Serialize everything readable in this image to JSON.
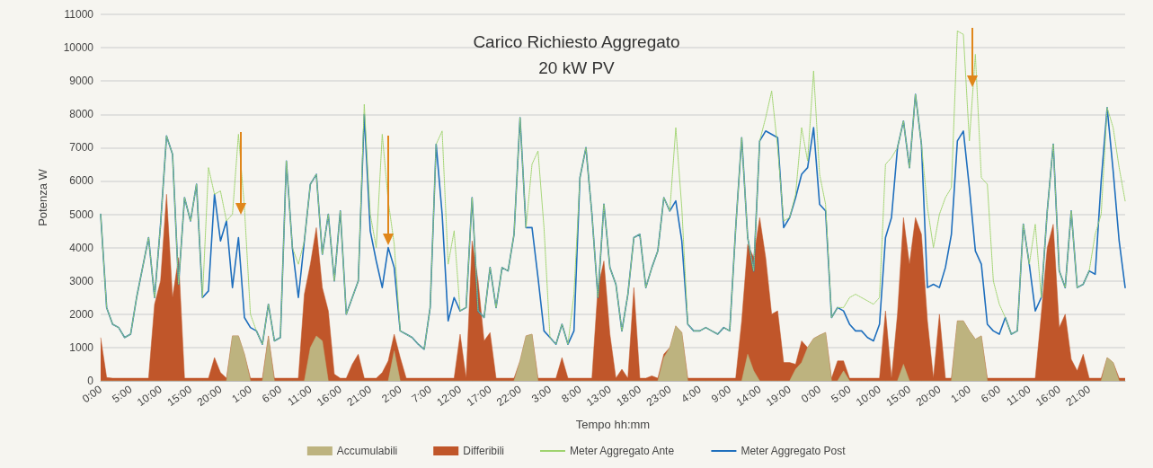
{
  "chart_data": {
    "type": "line",
    "title": "Carico Richiesto Aggregato",
    "subtitle": "20 kW PV",
    "xlabel": "Tempo hh:mm",
    "ylabel": "Potenza W",
    "categories": [
      "0:00",
      null,
      null,
      null,
      null,
      "5:00",
      null,
      null,
      null,
      null,
      "10:00",
      null,
      null,
      null,
      null,
      "15:00",
      null,
      null,
      null,
      null,
      "20:00",
      null,
      null,
      null,
      null,
      "1:00",
      null,
      null,
      null,
      null,
      "6:00",
      null,
      null,
      null,
      null,
      "11:00",
      null,
      null,
      null,
      null,
      "16:00",
      null,
      null,
      null,
      null,
      "21:00",
      null,
      null,
      null,
      null,
      "2:00",
      null,
      null,
      null,
      null,
      "7:00",
      null,
      null,
      null,
      null,
      "12:00",
      null,
      null,
      null,
      null,
      "17:00",
      null,
      null,
      null,
      null,
      "22:00",
      null,
      null,
      null,
      null,
      "3:00",
      null,
      null,
      null,
      null,
      "8:00",
      null,
      null,
      null,
      null,
      "13:00",
      null,
      null,
      null,
      null,
      "18:00",
      null,
      null,
      null,
      null,
      "23:00",
      null,
      null,
      null,
      null,
      "4:00",
      null,
      null,
      null,
      null,
      "9:00",
      null,
      null,
      null,
      null,
      "14:00",
      null,
      null,
      null,
      null,
      "19:00",
      null,
      null,
      null,
      null,
      "0:00",
      null,
      null,
      null,
      null,
      "5:00",
      null,
      null,
      null,
      null,
      "10:00",
      null,
      null,
      null,
      null,
      "15:00",
      null,
      null,
      null,
      null,
      "20:00",
      null,
      null,
      null,
      null,
      "1:00",
      null,
      null,
      null,
      null,
      "6:00",
      null,
      null,
      null,
      null,
      "11:00",
      null,
      null,
      null,
      null,
      "16:00",
      null,
      null,
      null,
      null,
      "21:00",
      null,
      null,
      null,
      null,
      null,
      null
    ],
    "series": [
      {
        "name": "Accumulabili",
        "type": "area",
        "color": "#bdb37f",
        "values": [
          0,
          0,
          0,
          0,
          0,
          0,
          0,
          0,
          0,
          0,
          0,
          0,
          0,
          0,
          0,
          0,
          0,
          0,
          0,
          0,
          0,
          0,
          1350,
          1350,
          800,
          0,
          0,
          0,
          1300,
          0,
          0,
          0,
          0,
          0,
          0,
          1000,
          1350,
          1200,
          0,
          0,
          0,
          0,
          0,
          0,
          0,
          0,
          0,
          0,
          0,
          900,
          0,
          0,
          0,
          0,
          0,
          0,
          0,
          0,
          0,
          0,
          0,
          0,
          0,
          0,
          0,
          0,
          0,
          0,
          0,
          0,
          600,
          1350,
          1400,
          0,
          0,
          0,
          0,
          0,
          0,
          0,
          0,
          0,
          0,
          0,
          0,
          0,
          0,
          0,
          0,
          0,
          0,
          0,
          0,
          0,
          700,
          1000,
          1650,
          1450,
          0,
          0,
          0,
          0,
          0,
          0,
          0,
          0,
          0,
          0,
          800,
          300,
          0,
          0,
          0,
          0,
          0,
          0,
          350,
          550,
          1000,
          1270,
          1370,
          1450,
          0,
          0,
          300,
          0,
          0,
          0,
          0,
          0,
          0,
          0,
          0,
          0,
          500,
          0,
          0,
          0,
          0,
          0,
          0,
          0,
          0,
          1800,
          1800,
          1500,
          1250,
          1350,
          0,
          0,
          0,
          0,
          0,
          0,
          0,
          0,
          0,
          0,
          0,
          0,
          0,
          0,
          0,
          0,
          0,
          0,
          0,
          0,
          700,
          550,
          0,
          0
        ]
      },
      {
        "name": "Differibili",
        "type": "area",
        "color": "#c0562a",
        "values": [
          1300,
          100,
          80,
          80,
          80,
          80,
          80,
          80,
          80,
          2300,
          3000,
          5600,
          2500,
          3700,
          80,
          80,
          80,
          80,
          80,
          700,
          250,
          80,
          1350,
          1350,
          800,
          80,
          80,
          80,
          1350,
          80,
          80,
          80,
          80,
          80,
          2600,
          3500,
          4600,
          2800,
          2100,
          200,
          80,
          80,
          500,
          800,
          80,
          80,
          80,
          250,
          600,
          1400,
          700,
          80,
          80,
          80,
          80,
          80,
          80,
          80,
          80,
          80,
          1400,
          80,
          4200,
          3000,
          1200,
          1450,
          80,
          80,
          80,
          80,
          600,
          1350,
          1400,
          80,
          80,
          80,
          80,
          700,
          80,
          80,
          80,
          80,
          80,
          2800,
          3600,
          1400,
          80,
          350,
          80,
          2800,
          80,
          80,
          150,
          80,
          800,
          1000,
          1650,
          1450,
          80,
          80,
          80,
          80,
          80,
          80,
          80,
          80,
          80,
          1800,
          4100,
          3700,
          4900,
          3700,
          2000,
          2100,
          550,
          550,
          500,
          1200,
          1000,
          1270,
          1370,
          1450,
          80,
          600,
          600,
          80,
          80,
          80,
          80,
          80,
          80,
          2100,
          80,
          2000,
          4900,
          3500,
          4900,
          4400,
          1800,
          80,
          2000,
          80,
          80,
          1800,
          1800,
          1500,
          1250,
          1350,
          80,
          80,
          80,
          80,
          80,
          80,
          80,
          80,
          80,
          2000,
          4000,
          4700,
          1600,
          2000,
          650,
          300,
          800,
          80,
          80,
          80,
          700,
          550,
          80,
          80
        ]
      },
      {
        "name": "Meter Aggregato Ante",
        "line_style": "dotted",
        "color": "#9fd36e",
        "values": [
          5000,
          2200,
          1700,
          1600,
          1300,
          1400,
          2500,
          3400,
          4300,
          2500,
          4700,
          7350,
          6800,
          2900,
          5500,
          4800,
          5900,
          2500,
          6400,
          5600,
          5700,
          4800,
          5000,
          7400,
          5200,
          2000,
          1500,
          1100,
          2300,
          1200,
          1300,
          6600,
          4000,
          3500,
          4200,
          5900,
          6200,
          3800,
          5000,
          3000,
          5100,
          2000,
          2500,
          3000,
          8300,
          5000,
          4000,
          7400,
          5400,
          4100,
          1500,
          1400,
          1300,
          1100,
          950,
          2200,
          7100,
          7500,
          3500,
          4500,
          2100,
          2200,
          5500,
          2100,
          1900,
          3400,
          2200,
          3400,
          3300,
          4400,
          7900,
          4600,
          6500,
          6900,
          4600,
          1300,
          1100,
          1700,
          1100,
          2600,
          6100,
          7000,
          5000,
          2500,
          5300,
          3400,
          2900,
          1500,
          2600,
          4300,
          4400,
          2800,
          3400,
          3900,
          5500,
          5100,
          7600,
          5200,
          1700,
          1500,
          1500,
          1600,
          1500,
          1400,
          1600,
          1500,
          4600,
          7300,
          4300,
          3300,
          7200,
          7900,
          8700,
          7000,
          4800,
          4900,
          5600,
          7600,
          6600,
          9300,
          6200,
          5300,
          1900,
          2200,
          2200,
          2500,
          2600,
          2500,
          2400,
          2300,
          2500,
          6500,
          6700,
          7000,
          7800,
          6400,
          8600,
          7100,
          5200,
          4000,
          5000,
          5500,
          5800,
          10500,
          10400,
          7200,
          9800,
          6100,
          5900,
          3000,
          2300,
          1900,
          1400,
          1500,
          4700,
          3500,
          4700,
          2500,
          5100,
          7100,
          3300,
          2800,
          5100,
          2800,
          2900,
          3300,
          4400,
          5000,
          8200,
          7600,
          6400,
          5400
        ]
      },
      {
        "name": "Meter Aggregato Post",
        "line_style": "solid",
        "color": "#1f6fbd",
        "values": [
          5000,
          2200,
          1700,
          1600,
          1300,
          1400,
          2500,
          3400,
          4300,
          2500,
          4700,
          7350,
          6800,
          2900,
          5500,
          4800,
          5900,
          2500,
          2700,
          5600,
          4200,
          4800,
          2800,
          4300,
          1900,
          1600,
          1500,
          1100,
          2300,
          1200,
          1300,
          6600,
          4000,
          2500,
          4200,
          5900,
          6200,
          3800,
          5000,
          3000,
          5100,
          2000,
          2500,
          3000,
          8000,
          4500,
          3600,
          2800,
          4000,
          3400,
          1500,
          1400,
          1300,
          1100,
          950,
          2200,
          7100,
          5000,
          1800,
          2500,
          2100,
          2200,
          5500,
          2100,
          1900,
          3400,
          2200,
          3400,
          3300,
          4400,
          7900,
          4600,
          4600,
          3100,
          1500,
          1300,
          1100,
          1700,
          1100,
          1500,
          6100,
          7000,
          5000,
          2500,
          5300,
          3400,
          2900,
          1500,
          2600,
          4300,
          4400,
          2800,
          3400,
          3900,
          5500,
          5100,
          5400,
          4200,
          1700,
          1500,
          1500,
          1600,
          1500,
          1400,
          1600,
          1500,
          4600,
          7300,
          4300,
          3300,
          7200,
          7500,
          7400,
          7300,
          4600,
          4900,
          5500,
          6200,
          6400,
          7600,
          5300,
          5100,
          1900,
          2200,
          2100,
          1700,
          1500,
          1500,
          1300,
          1200,
          1700,
          4300,
          4900,
          7000,
          7800,
          6400,
          8600,
          7100,
          2800,
          2900,
          2800,
          3400,
          4400,
          7200,
          7500,
          5800,
          3900,
          3500,
          1700,
          1500,
          1400,
          1900,
          1400,
          1500,
          4700,
          3500,
          2100,
          2500,
          5100,
          7100,
          3300,
          2800,
          5100,
          2800,
          2900,
          3300,
          3200,
          6000,
          8200,
          6300,
          4200,
          2800
        ]
      }
    ],
    "ylim": [
      0,
      11000
    ],
    "yticks": [
      0,
      {
        "value": 1000,
        "label": "1000"
      },
      {
        "value": 2000,
        "label": "2000"
      },
      {
        "value": 3000,
        "label": "3000"
      },
      {
        "value": 4000,
        "label": "4000"
      },
      {
        "value": 5000,
        "label": "5000"
      },
      {
        "value": 6000,
        "label": "6000"
      },
      {
        "value": 7000,
        "label": "7000"
      },
      {
        "value": 8000,
        "label": "8000"
      },
      {
        "value": 9000,
        "label": "9000"
      },
      {
        "value": 10000,
        "label": "10000"
      },
      {
        "value": 11000,
        "label": "11000"
      }
    ],
    "grid": "y",
    "legend": "bottom",
    "marker": "none"
  }
}
